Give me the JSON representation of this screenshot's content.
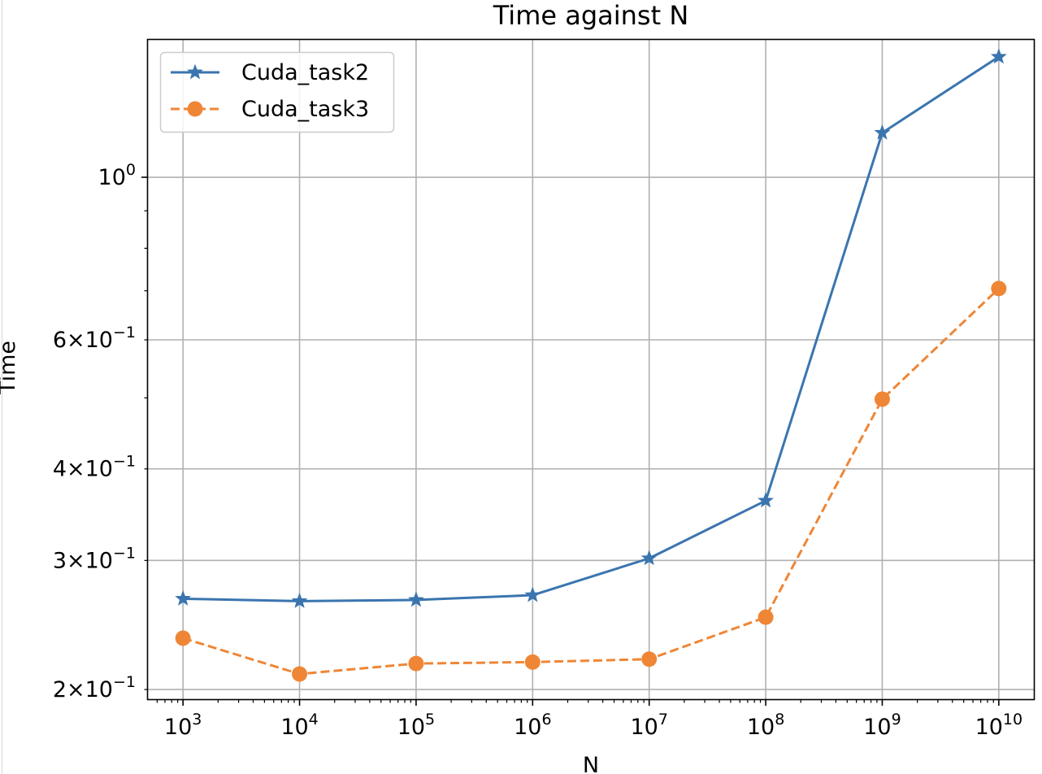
{
  "chart_data": {
    "type": "line",
    "title": "Time against N",
    "xlabel": "N",
    "ylabel": "Time",
    "xscale": "log",
    "yscale": "log",
    "x": [
      1000,
      10000,
      100000,
      1000000,
      10000000,
      100000000,
      1000000000,
      10000000000
    ],
    "xlim": [
      500,
      20000000000
    ],
    "ylim": [
      0.194,
      1.54
    ],
    "x_tick_labels": [
      {
        "base": "10",
        "exp": "3"
      },
      {
        "base": "10",
        "exp": "4"
      },
      {
        "base": "10",
        "exp": "5"
      },
      {
        "base": "10",
        "exp": "6"
      },
      {
        "base": "10",
        "exp": "7"
      },
      {
        "base": "10",
        "exp": "8"
      },
      {
        "base": "10",
        "exp": "9"
      },
      {
        "base": "10",
        "exp": "10"
      }
    ],
    "y_tick_labels": [
      {
        "value": 1.0,
        "mant": "",
        "base": "10",
        "exp": "0"
      },
      {
        "value": 0.6,
        "mant": "6",
        "base": "10",
        "exp": "−1"
      },
      {
        "value": 0.4,
        "mant": "4",
        "base": "10",
        "exp": "−1"
      },
      {
        "value": 0.3,
        "mant": "3",
        "base": "10",
        "exp": "−1"
      },
      {
        "value": 0.2,
        "mant": "2",
        "base": "10",
        "exp": "−1"
      }
    ],
    "grid": true,
    "legend": "top-left",
    "series": [
      {
        "name": "Cuda_task2",
        "color": "#3a75af",
        "marker": "star",
        "linestyle": "solid",
        "values": [
          0.266,
          0.264,
          0.265,
          0.269,
          0.302,
          0.362,
          1.15,
          1.46
        ]
      },
      {
        "name": "Cuda_task3",
        "color": "#ef8636",
        "marker": "circle",
        "linestyle": "dashed",
        "values": [
          0.235,
          0.21,
          0.217,
          0.218,
          0.22,
          0.251,
          0.498,
          0.705
        ]
      }
    ]
  }
}
